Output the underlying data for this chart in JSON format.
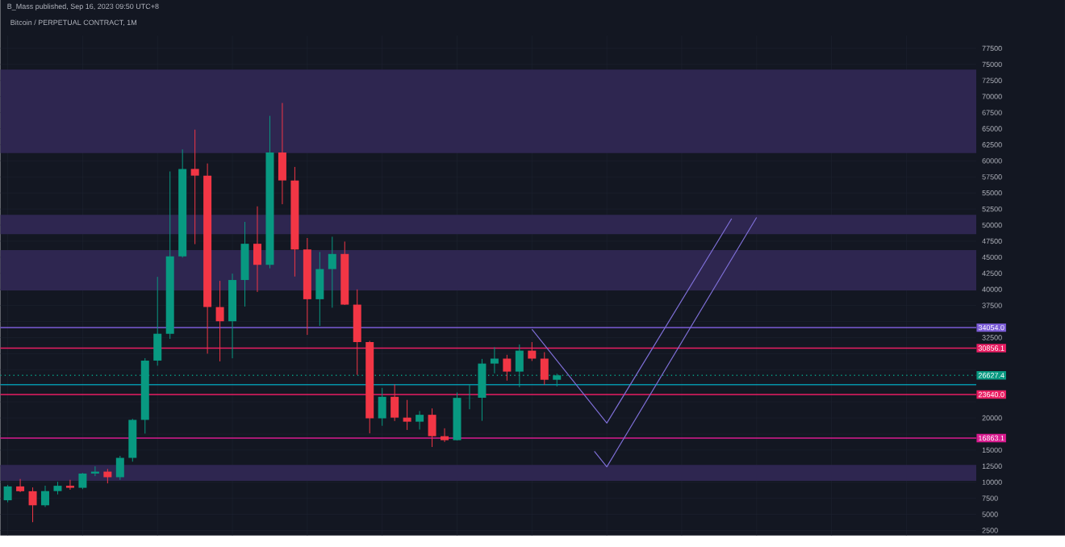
{
  "chart_data": {
    "type": "candlestick",
    "title": "B_Mass published, Sep 16, 2023 09:50 UTC+8",
    "subtitle": "Bitcoin / PERPETUAL CONTRACT, 1M",
    "categories": [
      null,
      null,
      null,
      null,
      null,
      null,
      null,
      null,
      null,
      null,
      null,
      null,
      null,
      null,
      null,
      null,
      null,
      null,
      null,
      null,
      null,
      null,
      null,
      null,
      null,
      null,
      null,
      null,
      null,
      null,
      null,
      null,
      null,
      null,
      null,
      null,
      null,
      null,
      null,
      null,
      null,
      null,
      null,
      null,
      null,
      null,
      null,
      null,
      null,
      null,
      null,
      null,
      null,
      null,
      null,
      null,
      null,
      null,
      null,
      null,
      null,
      null,
      null,
      null,
      null,
      null,
      null,
      null,
      null,
      null,
      null,
      null,
      null,
      null,
      null,
      null,
      null,
      null
    ],
    "ohlc": [
      [
        7195,
        9578,
        6871,
        9350
      ],
      [
        9350,
        10500,
        8450,
        8600
      ],
      [
        8600,
        9190,
        3782,
        6410
      ],
      [
        6410,
        9460,
        6150,
        8620
      ],
      [
        8620,
        10070,
        8100,
        9450
      ],
      [
        9450,
        10380,
        8830,
        9135
      ],
      [
        9135,
        11450,
        8920,
        11350
      ],
      [
        11350,
        12470,
        10950,
        11650
      ],
      [
        11650,
        12070,
        9820,
        10780
      ],
      [
        10780,
        14100,
        10370,
        13790
      ],
      [
        13790,
        19860,
        13200,
        19700
      ],
      [
        19700,
        29300,
        17570,
        28920
      ],
      [
        28920,
        41950,
        28130,
        33100
      ],
      [
        33100,
        58350,
        32300,
        45130
      ],
      [
        45130,
        61780,
        44950,
        58740
      ],
      [
        58740,
        64850,
        47040,
        57700
      ],
      [
        57700,
        59590,
        30000,
        37250
      ],
      [
        37250,
        41330,
        28800,
        35040
      ],
      [
        35040,
        42450,
        29280,
        41460
      ],
      [
        41460,
        50500,
        37330,
        47100
      ],
      [
        47100,
        52920,
        39600,
        43820
      ],
      [
        43820,
        67000,
        43280,
        61300
      ],
      [
        61300,
        69000,
        53250,
        56950
      ],
      [
        56950,
        59050,
        42000,
        46210
      ],
      [
        46210,
        47990,
        32920,
        38470
      ],
      [
        38470,
        45820,
        34320,
        43160
      ],
      [
        43160,
        48190,
        37150,
        45510
      ],
      [
        45510,
        47440,
        37580,
        37630
      ],
      [
        37630,
        40000,
        26700,
        31800
      ],
      [
        31800,
        31990,
        17600,
        19940
      ],
      [
        19940,
        24670,
        18780,
        23290
      ],
      [
        23290,
        25210,
        19520,
        20050
      ],
      [
        20050,
        22800,
        18130,
        19420
      ],
      [
        19420,
        21080,
        18190,
        20490
      ],
      [
        20490,
        21480,
        15480,
        17160
      ],
      [
        17160,
        18390,
        16260,
        16540
      ],
      [
        16540,
        23960,
        16500,
        23125
      ],
      [
        23125,
        25250,
        21350,
        23140
      ],
      [
        23140,
        29180,
        19550,
        28460
      ],
      [
        28460,
        31000,
        26940,
        29230
      ],
      [
        29230,
        29820,
        25810,
        27210
      ],
      [
        27210,
        31430,
        24800,
        30470
      ],
      [
        30470,
        31800,
        28860,
        29230
      ],
      [
        29230,
        30230,
        25170,
        25940
      ],
      [
        25940,
        26880,
        24900,
        26627.4
      ],
      null,
      null,
      null,
      null,
      null,
      null,
      null,
      null,
      null,
      null,
      null,
      null,
      null,
      null,
      null,
      null,
      null,
      null,
      null,
      null,
      null,
      null,
      null,
      null,
      null,
      null,
      null,
      null,
      null,
      null,
      null,
      null,
      null
    ],
    "colors": [
      "#089981",
      "#f23645",
      "#f23645",
      "#089981",
      "#089981",
      "#f23645",
      "#089981",
      "#089981",
      "#f23645",
      "#089981",
      "#089981",
      "#089981",
      "#089981",
      "#089981",
      "#089981",
      "#f23645",
      "#f23645",
      "#f23645",
      "#089981",
      "#089981",
      "#f23645",
      "#089981",
      "#f23645",
      "#f23645",
      "#f23645",
      "#089981",
      "#089981",
      "#f23645",
      "#f23645",
      "#f23645",
      "#089981",
      "#f23645",
      "#f23645",
      "#089981",
      "#f23645",
      "#f23645",
      "#089981",
      "#089981",
      "#089981",
      "#089981",
      "#f23645",
      "#089981",
      "#f23645",
      "#f23645",
      "#089981",
      null,
      null,
      null,
      null,
      null,
      null,
      null,
      null,
      null,
      null,
      null,
      null,
      null,
      null,
      null,
      null,
      null,
      null,
      null,
      null,
      null,
      null,
      null,
      null,
      null,
      null,
      null,
      null,
      null,
      null,
      null,
      null,
      null
    ],
    "series": [
      {
        "type": "line",
        "values": [
          null,
          null,
          null,
          null,
          null,
          null,
          null,
          null,
          null,
          null,
          null,
          null,
          null,
          null,
          null,
          null,
          null,
          null,
          null,
          null,
          null,
          null,
          null,
          null,
          null,
          null,
          null,
          null,
          null,
          null,
          null,
          null,
          null,
          null,
          null,
          null,
          null,
          null,
          null,
          null,
          null,
          null,
          33800,
          null,
          null,
          null,
          null,
          null,
          19200,
          null,
          null,
          null,
          null,
          null,
          null,
          null,
          null,
          null,
          51000,
          null,
          null,
          null,
          null,
          null,
          null,
          null,
          null,
          null,
          null,
          null,
          null,
          null,
          null,
          null,
          null,
          null,
          null,
          null
        ],
        "color": "#7e6fd6"
      },
      {
        "type": "line",
        "values": [
          null,
          null,
          null,
          null,
          null,
          null,
          null,
          null,
          null,
          null,
          null,
          null,
          null,
          null,
          null,
          null,
          null,
          null,
          null,
          null,
          null,
          null,
          null,
          null,
          null,
          null,
          null,
          null,
          null,
          null,
          null,
          null,
          null,
          null,
          null,
          null,
          null,
          null,
          null,
          null,
          null,
          null,
          null,
          null,
          null,
          null,
          null,
          14800,
          12400,
          null,
          null,
          null,
          null,
          null,
          null,
          null,
          null,
          null,
          null,
          null,
          51200,
          null,
          null,
          null,
          null,
          null,
          null,
          null,
          null,
          null,
          null,
          null,
          null,
          null,
          null,
          null,
          null,
          null
        ],
        "color": "#7e6fd6"
      }
    ],
    "ylim": [
      1700,
      79500
    ],
    "yticks": [
      2500,
      5000,
      7500,
      10000,
      12500,
      15000,
      {
        "value": 17500,
        "label": null
      },
      20000,
      {
        "value": 22500,
        "label": null
      },
      {
        "value": 25000,
        "label": null
      },
      {
        "value": 27500,
        "label": null
      },
      {
        "value": 30000,
        "label": null
      },
      32500,
      {
        "value": 35000,
        "label": null
      },
      37500,
      40000,
      42500,
      45000,
      47500,
      50000,
      52500,
      55000,
      57500,
      60000,
      62500,
      65000,
      67500,
      70000,
      72500,
      75000,
      77500
    ],
    "tick_labels": "y",
    "grid": true,
    "bands": [
      {
        "axis": "y",
        "from": 61200,
        "to": 74200,
        "color": "#2e2650"
      },
      {
        "axis": "y",
        "from": 48600,
        "to": 51600,
        "color": "#2e2650"
      },
      {
        "axis": "y",
        "from": 39850,
        "to": 46100,
        "color": "#2e2650"
      },
      {
        "axis": "y",
        "from": 10200,
        "to": 12700,
        "color": "#2e2650"
      }
    ],
    "ref_lines": [
      {
        "axis": "y",
        "value": 34054,
        "label": "34054.0",
        "color": "#7b5cd6",
        "line_style": "solid"
      },
      {
        "axis": "y",
        "value": 30856.1,
        "label": "30856.1",
        "color": "#e91e63",
        "line_style": "solid"
      },
      {
        "axis": "y",
        "value": 26627.4,
        "label": "26627.4",
        "color": "#089981",
        "line_style": "dotted"
      },
      {
        "axis": "y",
        "value": 25170,
        "color": "#00bcd4",
        "line_style": "solid"
      },
      {
        "axis": "y",
        "value": 23640,
        "label": "23640.0",
        "color": "#e91e63",
        "line_style": "solid"
      },
      {
        "axis": "y",
        "value": 16863.1,
        "label": "16863.1",
        "color": "#d81b8f",
        "line_style": "solid"
      }
    ]
  }
}
